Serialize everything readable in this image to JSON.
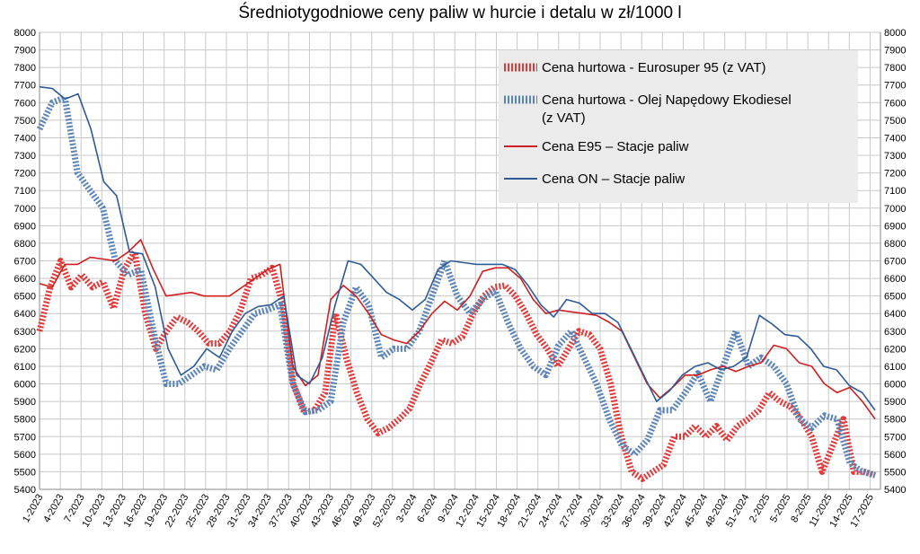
{
  "chart_data": {
    "type": "line",
    "title": "Średniotygodniowe ceny paliw w hurcie i detalu w zł/1000 l",
    "xlabel": "",
    "ylabel": "",
    "ylim": [
      5400,
      8000
    ],
    "y_ticks": [
      5400,
      5500,
      5600,
      5700,
      5800,
      5900,
      6000,
      6100,
      6200,
      6300,
      6400,
      6500,
      6600,
      6700,
      6800,
      6900,
      7000,
      7100,
      7200,
      7300,
      7400,
      7500,
      7600,
      7700,
      7800,
      7900,
      8000
    ],
    "y_axis_right_duplicate": true,
    "grid": true,
    "legend_position": "top-right",
    "x_labels": [
      "1-2023",
      "4-2023",
      "7-2023",
      "10-2023",
      "13-2023",
      "16-2023",
      "19-2023",
      "22-2023",
      "25-2023",
      "28-2023",
      "31-2023",
      "34-2023",
      "37-2023",
      "40-2023",
      "43-2023",
      "46-2023",
      "49-2023",
      "52-2023",
      "3-2024",
      "6-2024",
      "9-2024",
      "12-2024",
      "15-2024",
      "18-2024",
      "21-2024",
      "24-2024",
      "27-2024",
      "30-2024",
      "33-2024",
      "36-2024",
      "39-2024",
      "42-2024",
      "45-2024",
      "48-2024",
      "51-2024",
      "2-2025",
      "5-2025",
      "8-2025",
      "11-2025",
      "14-2025",
      "17-2025"
    ],
    "series": [
      {
        "name": "Cena hurtowa  - Eurosuper 95 (z VAT)",
        "color": "#e03a3a",
        "style": "thick-dashed",
        "values": [
          6300,
          6550,
          6700,
          6550,
          6620,
          6550,
          6580,
          6430,
          6650,
          6750,
          6400,
          6200,
          6300,
          6380,
          6350,
          6300,
          6230,
          6230,
          6300,
          6420,
          6600,
          6620,
          6660,
          6450,
          6000,
          5840,
          5850,
          5950,
          6400,
          6150,
          5950,
          5800,
          5720,
          5750,
          5800,
          5860,
          6000,
          6120,
          6250,
          6230,
          6270,
          6400,
          6500,
          6550,
          6560,
          6500,
          6400,
          6280,
          6200,
          6100,
          6200,
          6300,
          6280,
          6200,
          6000,
          5700,
          5500,
          5460,
          5500,
          5540,
          5700,
          5700,
          5760,
          5700,
          5760,
          5680,
          5760,
          5800,
          5850,
          5950,
          5900,
          5870,
          5800,
          5700,
          5500,
          5650,
          5800,
          5500,
          5500,
          5480
        ]
      },
      {
        "name": "Cena hurtowa - Olej Napędowy Ekodiesel (z VAT)",
        "color": "#5b84b8",
        "style": "thick-dashed",
        "values": [
          7450,
          7600,
          7630,
          7200,
          7100,
          7000,
          6700,
          6620,
          6650,
          6300,
          6000,
          6000,
          6050,
          6100,
          6080,
          6200,
          6300,
          6400,
          6420,
          6450,
          6000,
          5840,
          5850,
          5900,
          6350,
          6550,
          6450,
          6150,
          6200,
          6200,
          6300,
          6500,
          6700,
          6500,
          6400,
          6480,
          6530,
          6350,
          6200,
          6100,
          6050,
          6220,
          6300,
          6150,
          6000,
          5800,
          5650,
          5600,
          5680,
          5850,
          5850,
          5950,
          6060,
          5900,
          6100,
          6300,
          6100,
          6150,
          6100,
          6000,
          5800,
          5750,
          5820,
          5800,
          5550,
          5500,
          5480
        ]
      },
      {
        "name": "Cena E95 – Stacje paliw",
        "color": "#cc1f1f",
        "style": "solid",
        "values": [
          6570,
          6550,
          6680,
          6680,
          6720,
          6710,
          6700,
          6750,
          6820,
          6650,
          6500,
          6510,
          6520,
          6500,
          6500,
          6500,
          6550,
          6600,
          6650,
          6680,
          6100,
          5990,
          6050,
          6480,
          6560,
          6500,
          6400,
          6280,
          6250,
          6230,
          6300,
          6400,
          6470,
          6420,
          6500,
          6640,
          6660,
          6660,
          6600,
          6480,
          6400,
          6420,
          6410,
          6400,
          6390,
          6350,
          6300,
          6150,
          6000,
          5920,
          5980,
          6050,
          6050,
          6080,
          6100,
          6070,
          6100,
          6120,
          6220,
          6200,
          6120,
          6100,
          6000,
          5950,
          5980,
          5900,
          5800
        ]
      },
      {
        "name": "Cena ON – Stacje paliw",
        "color": "#2e5a96",
        "style": "solid",
        "values": [
          7690,
          7680,
          7620,
          7650,
          7450,
          7150,
          7070,
          6750,
          6740,
          6550,
          6200,
          6050,
          6100,
          6200,
          6150,
          6300,
          6400,
          6440,
          6450,
          6500,
          6050,
          6000,
          6150,
          6450,
          6700,
          6680,
          6600,
          6520,
          6480,
          6420,
          6480,
          6650,
          6700,
          6690,
          6680,
          6680,
          6680,
          6650,
          6560,
          6450,
          6380,
          6480,
          6460,
          6400,
          6400,
          6350,
          6200,
          6050,
          5900,
          5960,
          6050,
          6100,
          6120,
          6080,
          6100,
          6150,
          6390,
          6340,
          6280,
          6270,
          6200,
          6100,
          6080,
          5990,
          5950,
          5850
        ]
      }
    ]
  }
}
